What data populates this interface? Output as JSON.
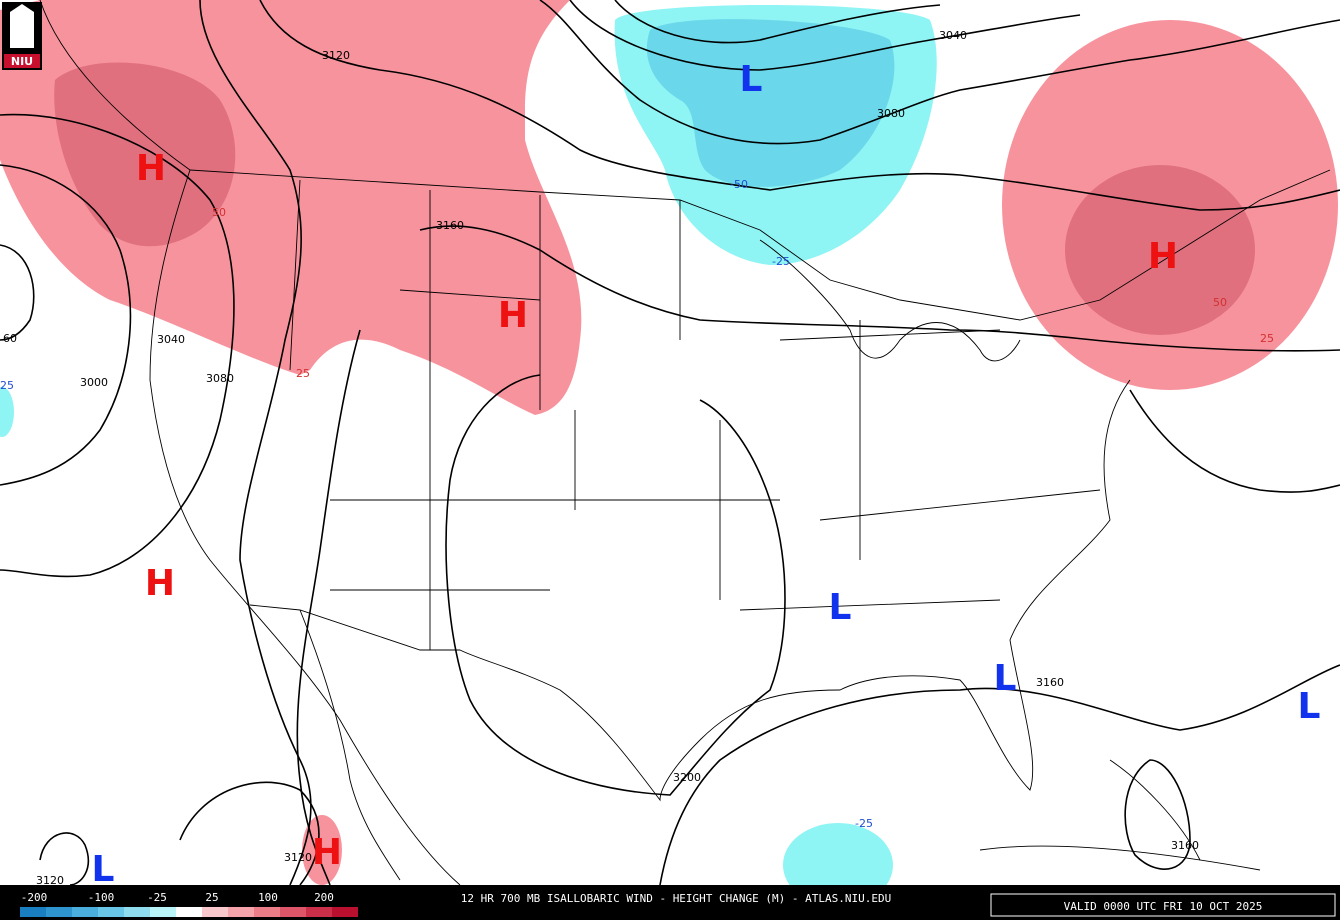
{
  "logo": "NIU",
  "map": {
    "contour_labels": [
      "3120",
      "3160",
      "3040",
      "3000",
      "3080",
      "3040",
      "3080",
      "3160",
      "3200",
      "3120",
      "3160",
      "3120",
      "60"
    ],
    "change_labels": [
      "-50",
      "-25",
      "50",
      "25",
      "50",
      "25",
      "25",
      "-25"
    ],
    "highs": [
      "H",
      "H",
      "H",
      "H",
      "H"
    ],
    "lows": [
      "L",
      "L",
      "L",
      "L",
      "L"
    ]
  },
  "footer": {
    "colorbar_labels": [
      "-200",
      "-100",
      "-25",
      "25",
      "100",
      "200"
    ],
    "title": "12 HR 700 MB ISALLOBARIC WIND - HEIGHT CHANGE (M) - ATLAS.NIU.EDU",
    "valid": "VALID 0000 UTC FRI 10 OCT 2025"
  }
}
